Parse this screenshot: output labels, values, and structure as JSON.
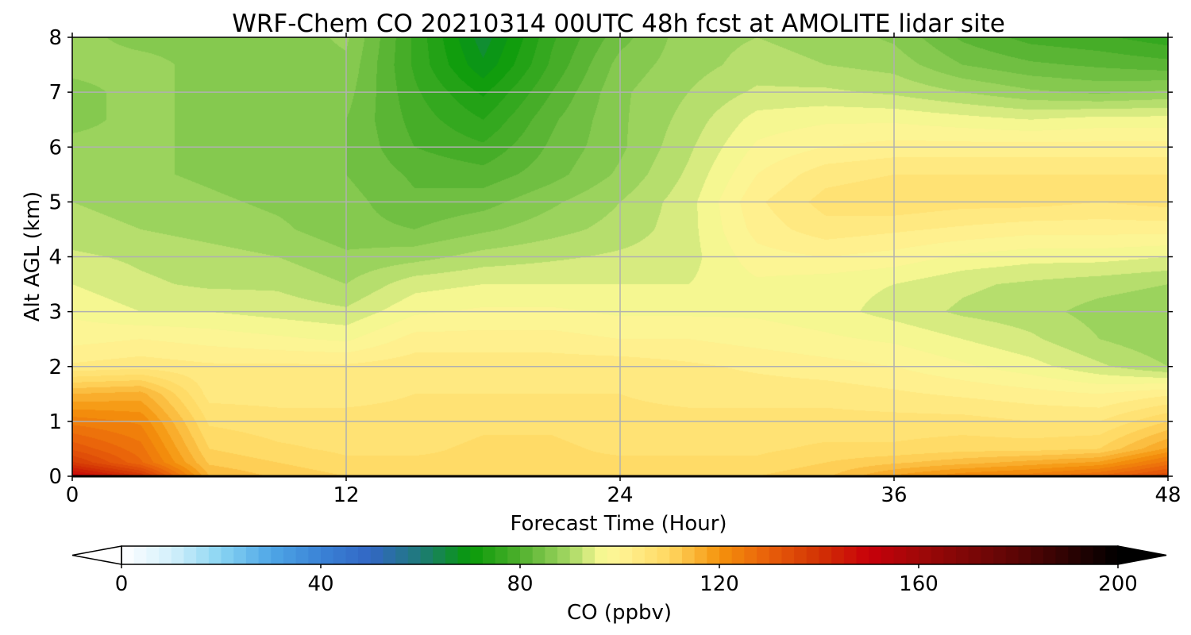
{
  "chart_data": {
    "type": "heatmap",
    "title": "WRF-Chem CO  20210314 00UTC 48h fcst at AMOLITE lidar site",
    "xlabel": "Forecast Time (Hour)",
    "ylabel": "Alt AGL (km)",
    "xlim": [
      0,
      48
    ],
    "ylim": [
      0,
      8
    ],
    "xticks": [
      "0",
      "12",
      "24",
      "36",
      "48"
    ],
    "xtick_values": [
      0,
      12,
      24,
      36,
      48
    ],
    "yticks": [
      "0",
      "1",
      "2",
      "3",
      "4",
      "5",
      "6",
      "7",
      "8"
    ],
    "ytick_values": [
      0,
      1,
      2,
      3,
      4,
      5,
      6,
      7,
      8
    ],
    "grid": true,
    "x": [
      0,
      3,
      6,
      9,
      12,
      15,
      18,
      21,
      24,
      27,
      30,
      33,
      36,
      39,
      42,
      45,
      48
    ],
    "y": [
      0,
      0.25,
      0.5,
      1,
      1.5,
      2,
      2.5,
      3,
      3.5,
      4,
      4.5,
      5,
      5.5,
      6,
      6.5,
      7,
      7.5,
      8
    ],
    "z": [
      [
        150,
        140,
        115,
        112,
        110,
        110,
        110,
        110,
        110,
        110,
        110,
        112,
        118,
        122,
        124,
        128,
        135
      ],
      [
        138,
        128,
        112,
        110,
        108,
        108,
        108,
        108,
        108,
        108,
        108,
        110,
        112,
        114,
        116,
        118,
        126
      ],
      [
        132,
        126,
        110,
        108,
        107,
        107,
        108,
        108,
        107,
        107,
        107,
        108,
        108,
        109,
        109,
        110,
        118
      ],
      [
        124,
        122,
        107,
        106,
        106,
        106,
        107,
        107,
        106,
        106,
        106,
        106,
        106,
        106,
        105,
        105,
        110
      ],
      [
        115,
        116,
        104,
        104,
        104,
        105,
        105,
        105,
        105,
        104,
        104,
        104,
        103,
        102,
        101,
        100,
        102
      ],
      [
        103,
        104,
        103,
        103,
        103,
        104,
        104,
        104,
        104,
        103,
        102,
        101,
        100,
        98,
        96,
        93,
        90
      ],
      [
        99,
        100,
        99,
        98,
        97,
        101,
        101,
        101,
        100,
        100,
        99,
        98,
        97,
        95,
        93,
        90,
        88
      ],
      [
        97,
        95,
        95,
        94,
        93,
        97,
        98,
        98,
        97,
        97,
        97,
        96,
        94,
        92,
        91,
        89,
        88
      ],
      [
        95,
        93,
        92,
        92,
        90,
        94,
        95,
        95,
        95,
        95,
        97,
        96,
        95,
        93,
        92,
        91,
        90
      ],
      [
        93,
        92,
        91,
        90,
        88,
        89,
        91,
        92,
        93,
        94,
        99,
        100,
        99,
        97,
        96,
        96,
        95
      ],
      [
        91,
        90,
        89,
        88,
        86,
        85,
        87,
        89,
        91,
        94,
        101,
        104,
        103,
        102,
        101,
        101,
        101
      ],
      [
        90,
        89,
        88,
        87,
        86,
        83,
        84,
        87,
        90,
        94,
        102,
        106,
        107,
        106,
        106,
        105,
        106
      ],
      [
        89,
        88,
        87,
        86,
        85,
        82,
        81,
        84,
        88,
        93,
        100,
        104,
        105,
        105,
        105,
        105,
        105
      ],
      [
        88,
        88,
        87,
        86,
        85,
        80,
        78,
        83,
        87,
        92,
        98,
        100,
        101,
        101,
        101,
        101,
        101
      ],
      [
        87,
        88,
        87,
        86,
        85,
        79,
        75,
        82,
        87,
        91,
        96,
        97,
        97,
        96,
        95,
        96,
        96
      ],
      [
        87,
        88,
        87,
        86,
        86,
        78,
        72,
        80,
        87,
        90,
        93,
        93,
        92,
        90,
        88,
        87,
        88
      ],
      [
        88,
        88,
        87,
        86,
        87,
        77,
        68,
        78,
        86,
        89,
        91,
        90,
        89,
        85,
        83,
        82,
        81
      ],
      [
        88,
        87,
        87,
        86,
        88,
        77,
        66,
        77,
        84,
        89,
        90,
        89,
        87,
        82,
        79,
        78,
        76
      ]
    ],
    "colorbar": {
      "label": "CO  (ppbv)",
      "ticks": [
        "0",
        "40",
        "80",
        "120",
        "160",
        "200"
      ],
      "tick_values": [
        0,
        40,
        80,
        120,
        160,
        200
      ],
      "range": [
        0,
        200
      ],
      "extend": "both",
      "color_stops": [
        [
          0,
          "#ffffff"
        ],
        [
          10,
          "#d4f0fb"
        ],
        [
          20,
          "#88d4f2"
        ],
        [
          30,
          "#4fa6e6"
        ],
        [
          40,
          "#3a82d6"
        ],
        [
          50,
          "#3266c4"
        ],
        [
          60,
          "#1e7a78"
        ],
        [
          70,
          "#089a08"
        ],
        [
          80,
          "#4fb02d"
        ],
        [
          90,
          "#a6d864"
        ],
        [
          96,
          "#f4f791"
        ],
        [
          100,
          "#fff495"
        ],
        [
          110,
          "#ffd760"
        ],
        [
          120,
          "#f5930c"
        ],
        [
          130,
          "#e85e0a"
        ],
        [
          140,
          "#d23204"
        ],
        [
          150,
          "#c8000a"
        ],
        [
          160,
          "#a00808"
        ],
        [
          180,
          "#5a0505"
        ],
        [
          200,
          "#000000"
        ]
      ]
    }
  }
}
